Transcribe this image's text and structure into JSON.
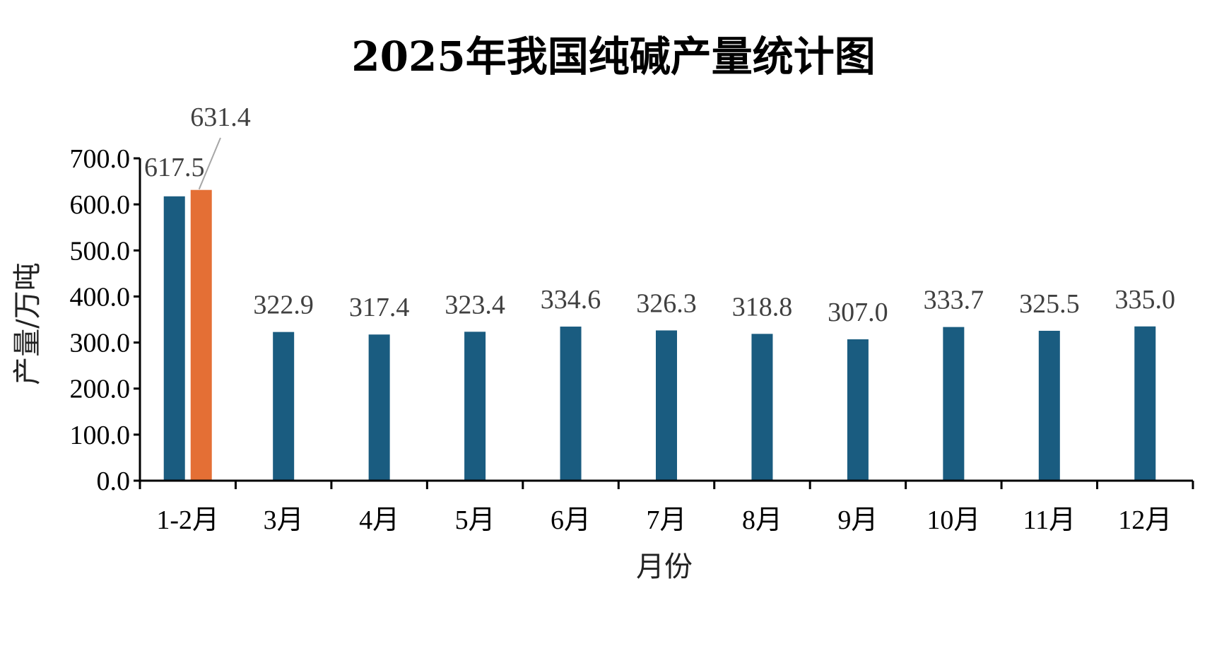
{
  "colors": {
    "primary": "#1a5c80",
    "highlight": "#e46f35",
    "axis": "#000000",
    "leader": "#a6a6a6",
    "data_label": "#404040"
  },
  "chart_data": {
    "type": "bar",
    "title": "2025年我国纯碱产量统计图",
    "xlabel": "月份",
    "ylabel": "产量/万吨",
    "ylim": [
      0,
      700
    ],
    "yticks": [
      "0.0",
      "100.0",
      "200.0",
      "300.0",
      "400.0",
      "500.0",
      "600.0",
      "700.0"
    ],
    "grid": false,
    "legend": "none",
    "categories": [
      "1-2月",
      "3月",
      "4月",
      "5月",
      "6月",
      "7月",
      "8月",
      "9月",
      "10月",
      "11月",
      "12月"
    ],
    "series": [
      {
        "color": "#1a5c80",
        "values": [
          617.5,
          322.9,
          317.4,
          323.4,
          334.6,
          326.3,
          318.8,
          307.0,
          333.7,
          325.5,
          335.0
        ],
        "labels": [
          "617.5",
          "322.9",
          "317.4",
          "323.4",
          "334.6",
          "326.3",
          "318.8",
          "307.0",
          "333.7",
          "325.5",
          "335.0"
        ]
      },
      {
        "color": "#e46f35",
        "values": [
          631.4,
          null,
          null,
          null,
          null,
          null,
          null,
          null,
          null,
          null,
          null
        ],
        "labels": [
          "631.4",
          null,
          null,
          null,
          null,
          null,
          null,
          null,
          null,
          null,
          null
        ]
      }
    ]
  }
}
